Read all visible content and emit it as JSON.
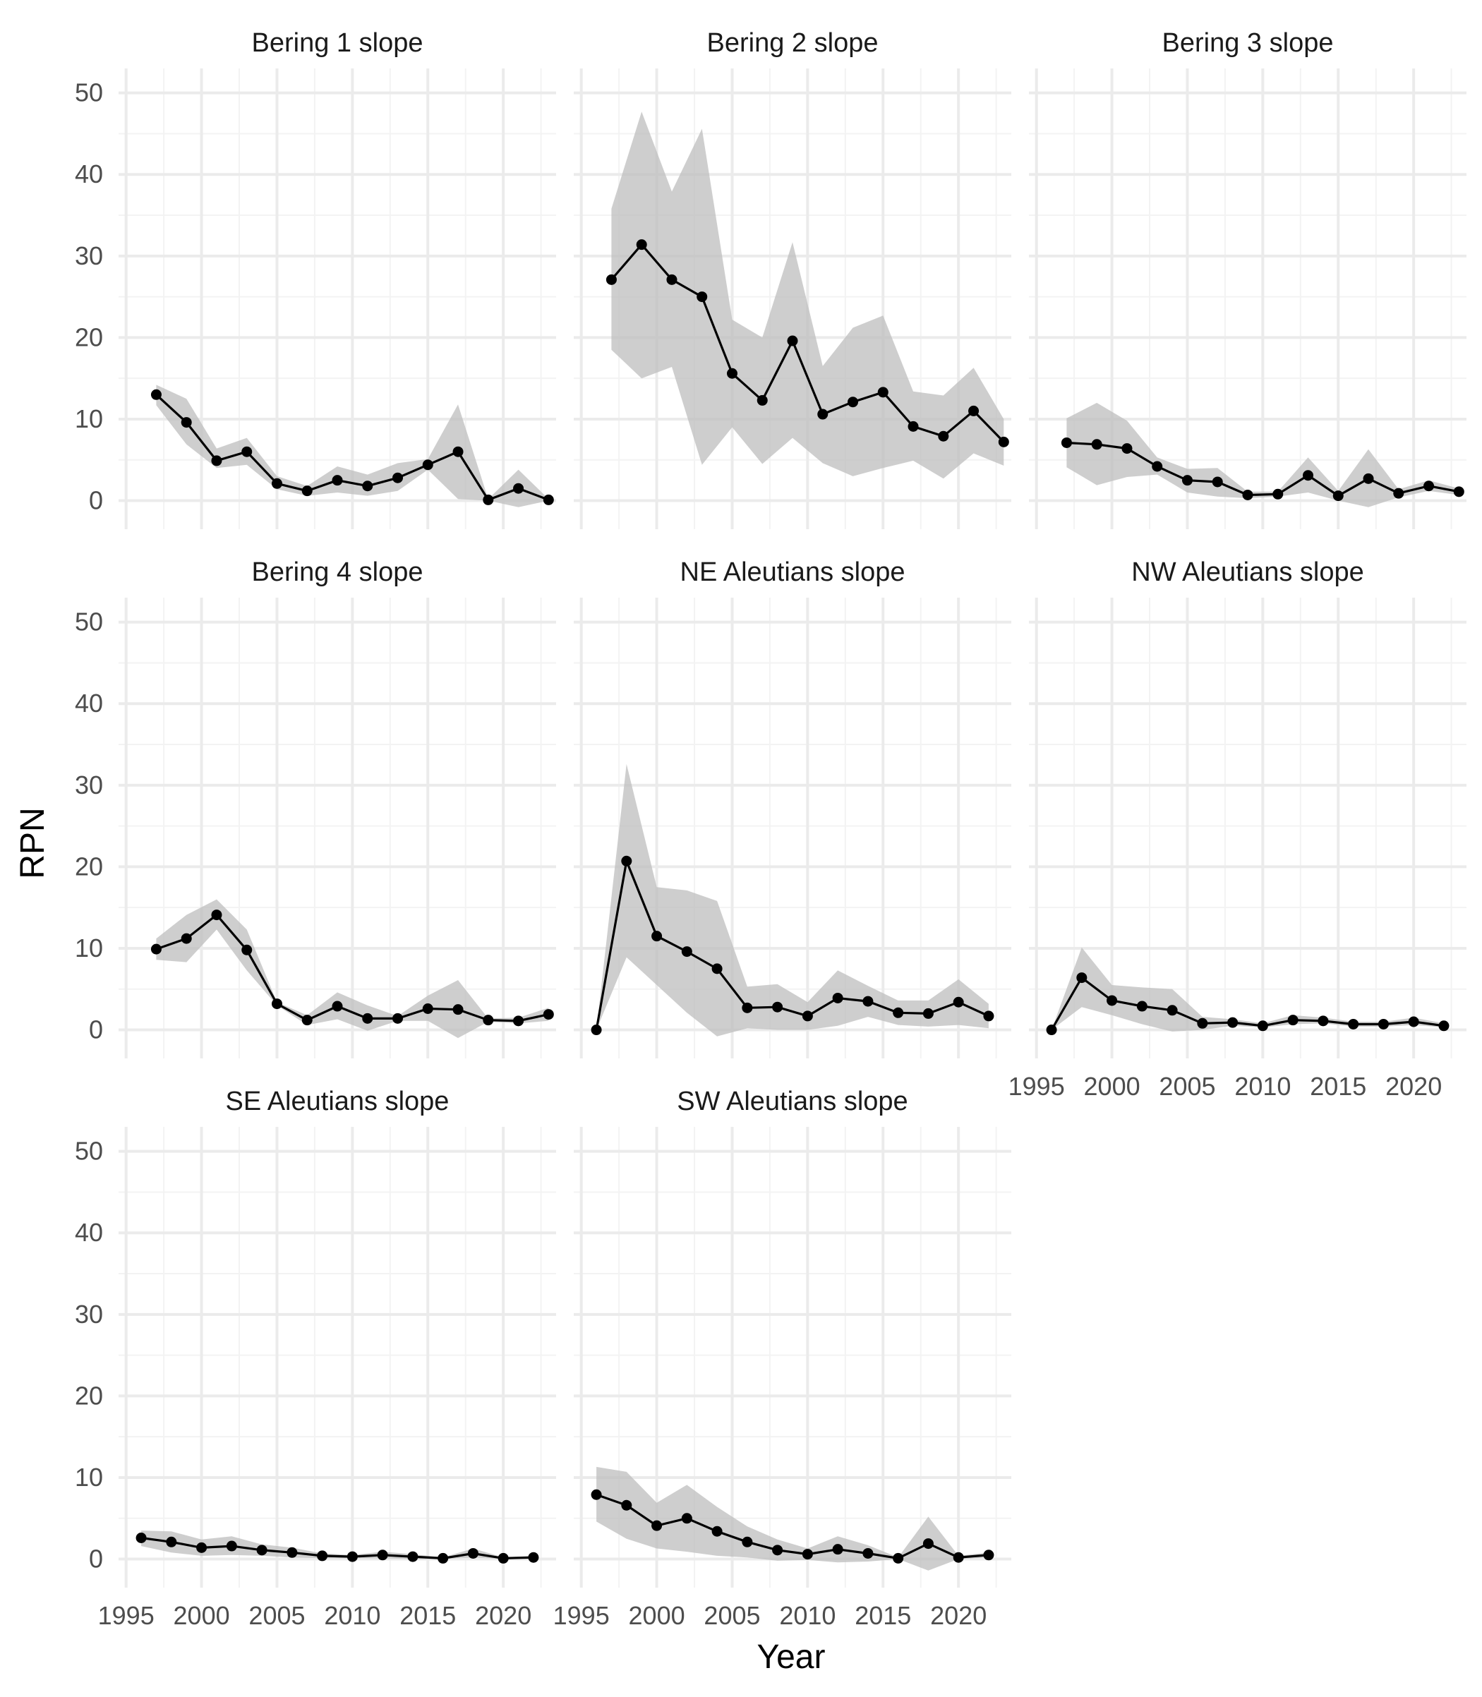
{
  "chart_data": {
    "type": "line",
    "xlabel": "Year",
    "ylabel": "RPN",
    "xlim": [
      1994.5,
      2023.5
    ],
    "ylim": [
      -3.5,
      53
    ],
    "x_ticks": [
      "1995",
      "2000",
      "2005",
      "2010",
      "2015",
      "2020"
    ],
    "y_ticks": [
      "0",
      "10",
      "20",
      "30",
      "40",
      "50"
    ],
    "grid": true,
    "band_color": "#bdbdbd",
    "line_color": "#000000",
    "panels": [
      {
        "title": "Bering 1 slope",
        "x": [
          1997,
          1999,
          2001,
          2003,
          2005,
          2007,
          2009,
          2011,
          2013,
          2015,
          2017,
          2019,
          2021,
          2023
        ],
        "values": [
          13.0,
          9.6,
          4.9,
          6.0,
          2.1,
          1.2,
          2.5,
          1.8,
          2.8,
          4.4,
          6.0,
          0.1,
          1.5,
          0.1
        ],
        "lower": [
          11.7,
          6.9,
          4.0,
          4.4,
          1.4,
          0.6,
          1.0,
          0.6,
          1.2,
          3.8,
          0.2,
          0.0,
          -0.8,
          0.0
        ],
        "upper": [
          14.2,
          12.5,
          6.4,
          7.7,
          3.0,
          1.8,
          4.2,
          3.2,
          4.6,
          5.1,
          11.8,
          0.2,
          3.8,
          0.2
        ]
      },
      {
        "title": "Bering 2 slope",
        "x": [
          1997,
          1999,
          2001,
          2003,
          2005,
          2007,
          2009,
          2011,
          2013,
          2015,
          2017,
          2019,
          2021,
          2023
        ],
        "values": [
          27.1,
          31.4,
          27.1,
          25.0,
          15.6,
          12.3,
          19.6,
          10.6,
          12.1,
          13.3,
          9.1,
          7.9,
          11.0,
          7.2
        ],
        "lower": [
          18.5,
          15.0,
          16.4,
          4.4,
          9.0,
          4.5,
          7.7,
          4.6,
          3.0,
          4.0,
          4.9,
          2.7,
          5.8,
          4.3
        ],
        "upper": [
          35.8,
          47.7,
          37.9,
          45.6,
          22.2,
          20.0,
          31.7,
          16.5,
          21.2,
          22.7,
          13.4,
          12.9,
          16.3,
          10.0
        ]
      },
      {
        "title": "Bering 3 slope",
        "x": [
          1997,
          1999,
          2001,
          2003,
          2005,
          2007,
          2009,
          2011,
          2013,
          2015,
          2017,
          2019,
          2021,
          2023
        ],
        "values": [
          7.1,
          6.9,
          6.4,
          4.2,
          2.5,
          2.3,
          0.7,
          0.8,
          3.1,
          0.6,
          2.7,
          0.9,
          1.8,
          1.1
        ],
        "lower": [
          4.1,
          1.9,
          2.9,
          3.2,
          1.0,
          0.5,
          0.3,
          0.5,
          1.0,
          0.0,
          -0.8,
          0.4,
          1.2,
          0.7
        ],
        "upper": [
          10.1,
          12.0,
          9.8,
          5.3,
          3.9,
          4.0,
          1.1,
          1.1,
          5.3,
          1.2,
          6.3,
          1.4,
          2.5,
          1.5
        ]
      },
      {
        "title": "Bering 4 slope",
        "x": [
          1997,
          1999,
          2001,
          2003,
          2005,
          2007,
          2009,
          2011,
          2013,
          2015,
          2017,
          2019,
          2021,
          2023
        ],
        "values": [
          9.9,
          11.2,
          14.1,
          9.8,
          3.2,
          1.2,
          2.9,
          1.4,
          1.4,
          2.6,
          2.5,
          1.2,
          1.1,
          1.9
        ],
        "lower": [
          8.6,
          8.3,
          12.3,
          7.3,
          3.0,
          0.6,
          1.3,
          -0.1,
          1.1,
          1.1,
          -1.0,
          1.0,
          0.8,
          1.1
        ],
        "upper": [
          11.2,
          14.1,
          16.0,
          12.3,
          3.4,
          1.8,
          4.6,
          3.0,
          1.7,
          4.2,
          6.1,
          1.4,
          1.5,
          2.7
        ]
      },
      {
        "title": "NE Aleutians slope",
        "x": [
          1996,
          1998,
          2000,
          2002,
          2004,
          2006,
          2008,
          2010,
          2012,
          2014,
          2016,
          2018,
          2020,
          2022
        ],
        "values": [
          0.0,
          20.7,
          11.5,
          9.6,
          7.5,
          2.7,
          2.8,
          1.7,
          3.9,
          3.5,
          2.1,
          2.0,
          3.4,
          1.7
        ],
        "lower": [
          0.0,
          8.9,
          5.5,
          2.1,
          -0.8,
          0.2,
          0.0,
          0.0,
          0.5,
          1.6,
          0.6,
          0.4,
          0.6,
          0.2
        ],
        "upper": [
          0.0,
          32.6,
          17.5,
          17.1,
          15.8,
          5.3,
          5.6,
          3.4,
          7.3,
          5.4,
          3.6,
          3.6,
          6.2,
          3.2
        ]
      },
      {
        "title": "NW Aleutians slope",
        "x": [
          1996,
          1998,
          2000,
          2002,
          2004,
          2006,
          2008,
          2010,
          2012,
          2014,
          2016,
          2018,
          2020,
          2022
        ],
        "values": [
          0.0,
          6.4,
          3.6,
          2.9,
          2.4,
          0.8,
          0.9,
          0.5,
          1.2,
          1.1,
          0.7,
          0.7,
          1.0,
          0.5
        ],
        "lower": [
          0.0,
          2.8,
          1.8,
          0.7,
          -0.2,
          0.0,
          0.5,
          0.3,
          0.7,
          0.8,
          0.4,
          0.4,
          0.6,
          0.3
        ],
        "upper": [
          0.0,
          10.1,
          5.5,
          5.2,
          5.0,
          1.6,
          1.3,
          0.8,
          1.8,
          1.5,
          1.0,
          1.0,
          1.5,
          0.8
        ]
      },
      {
        "title": "SE Aleutians slope",
        "x": [
          1996,
          1998,
          2000,
          2002,
          2004,
          2006,
          2008,
          2010,
          2012,
          2014,
          2016,
          2018,
          2020,
          2022
        ],
        "values": [
          2.6,
          2.1,
          1.4,
          1.6,
          1.1,
          0.8,
          0.4,
          0.3,
          0.5,
          0.3,
          0.1,
          0.7,
          0.1,
          0.2
        ],
        "lower": [
          1.6,
          0.8,
          0.4,
          0.5,
          0.4,
          0.2,
          0.1,
          0.1,
          0.1,
          0.0,
          0.0,
          0.2,
          0.0,
          0.0
        ],
        "upper": [
          3.5,
          3.4,
          2.4,
          2.8,
          1.8,
          1.4,
          0.7,
          0.5,
          0.9,
          0.6,
          0.2,
          1.3,
          0.2,
          0.4
        ]
      },
      {
        "title": "SW Aleutians slope",
        "x": [
          1996,
          1998,
          2000,
          2002,
          2004,
          2006,
          2008,
          2010,
          2012,
          2014,
          2016,
          2018,
          2020,
          2022
        ],
        "values": [
          7.9,
          6.6,
          4.1,
          5.0,
          3.4,
          2.1,
          1.1,
          0.6,
          1.2,
          0.7,
          0.1,
          1.9,
          0.2,
          0.5
        ],
        "lower": [
          4.6,
          2.5,
          1.3,
          0.9,
          0.4,
          0.2,
          -0.2,
          -0.1,
          -0.4,
          -0.3,
          0.0,
          -1.4,
          0.0,
          0.2
        ],
        "upper": [
          11.3,
          10.7,
          6.9,
          9.1,
          6.4,
          4.0,
          2.4,
          1.3,
          2.8,
          1.7,
          0.2,
          5.2,
          0.4,
          0.8
        ]
      }
    ]
  }
}
